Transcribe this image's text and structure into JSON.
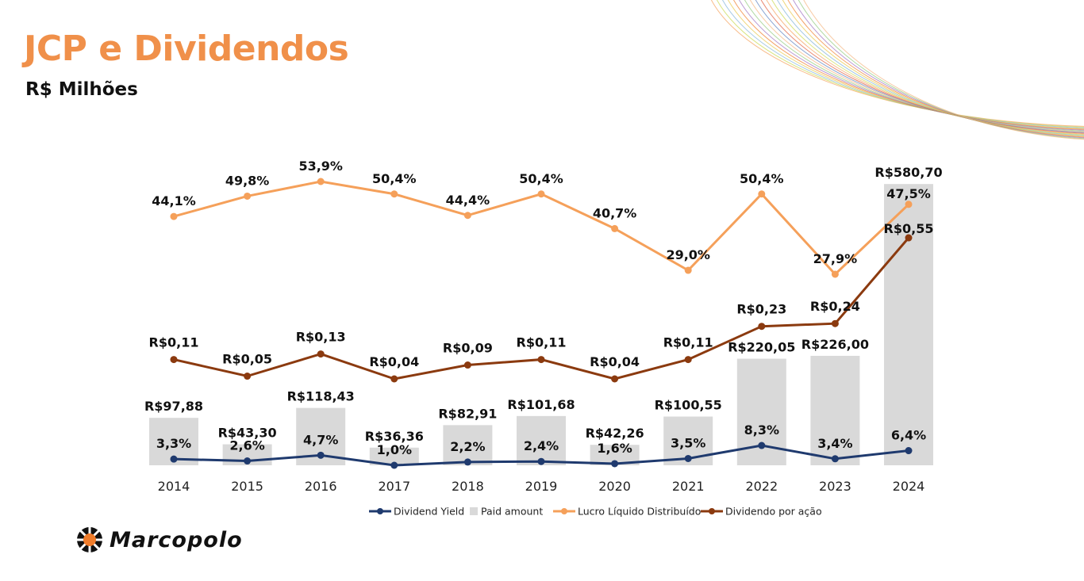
{
  "title": "JCP e Dividendos",
  "subtitle": "R$ Milhões",
  "logo_text": "Marcopolo",
  "colors": {
    "title": "#f0904a",
    "bar": "#d9d9d9",
    "lucro": "#f5a05a",
    "dpa": "#8b3a0f",
    "dy": "#1f3a6e"
  },
  "chart_data": {
    "type": "bar",
    "categories": [
      "2014",
      "2015",
      "2016",
      "2017",
      "2018",
      "2019",
      "2020",
      "2021",
      "2022",
      "2023",
      "2024"
    ],
    "series": [
      {
        "name": "Paid amount",
        "type": "bar",
        "values": [
          97.88,
          43.3,
          118.43,
          36.36,
          82.91,
          101.68,
          42.26,
          100.55,
          220.05,
          226.0,
          580.7
        ],
        "labels": [
          "R$97,88",
          "R$43,30",
          "R$118,43",
          "R$36,36",
          "R$82,91",
          "R$101,68",
          "R$42,26",
          "R$100,55",
          "R$220,05",
          "R$226,00",
          "R$580,70"
        ]
      },
      {
        "name": "Lucro Líquido Distribuído",
        "type": "line",
        "values": [
          44.1,
          49.8,
          53.9,
          50.4,
          44.4,
          50.4,
          40.7,
          29.0,
          50.4,
          27.9,
          47.5
        ],
        "labels": [
          "44,1%",
          "49,8%",
          "53,9%",
          "50,4%",
          "44,4%",
          "50,4%",
          "40,7%",
          "29,0%",
          "50,4%",
          "27,9%",
          "47,5%"
        ]
      },
      {
        "name": "Dividendo por ação",
        "type": "line",
        "values": [
          0.11,
          0.05,
          0.13,
          0.04,
          0.09,
          0.11,
          0.04,
          0.11,
          0.23,
          0.24,
          0.55
        ],
        "labels": [
          "R$0,11",
          "R$0,05",
          "R$0,13",
          "R$0,04",
          "R$0,09",
          "R$0,11",
          "R$0,04",
          "R$0,11",
          "R$0,23",
          "R$0,24",
          "R$0,55"
        ]
      },
      {
        "name": "Dividend Yield",
        "type": "line",
        "values": [
          3.3,
          2.6,
          4.7,
          1.0,
          2.2,
          2.4,
          1.6,
          3.5,
          8.3,
          3.4,
          6.4
        ],
        "labels": [
          "3,3%",
          "2,6%",
          "4,7%",
          "1,0%",
          "2,2%",
          "2,4%",
          "1,6%",
          "3,5%",
          "8,3%",
          "3,4%",
          "6,4%"
        ]
      }
    ],
    "legend": [
      "Dividend Yield",
      "Paid amount",
      "Lucro Líquido Distribuído",
      "Dividendo por ação"
    ],
    "legend_position": "bottom",
    "grid": false
  }
}
